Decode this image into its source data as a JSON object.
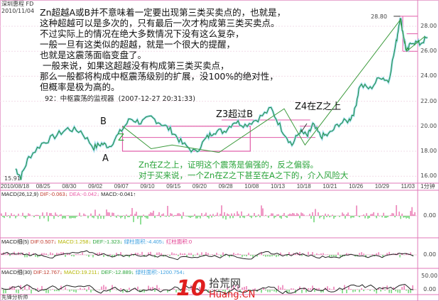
{
  "header": {
    "stock_name": "深圳惠程 FD",
    "date": "2010/11/04"
  },
  "annotation": {
    "lines": [
      "Zn超越A或B并不意味着一定要出现第三类买卖点的，也就是，",
      "这种超越可以是多次的，只有最后一次才构成第三类买卖点。",
      "不过实际上的情况在绝大多数情况下没有这么复杂，",
      "一般一旦有这类似的超越，就是一个很大的提醒，",
      "也就是这震荡面临变盘了。",
      " 一般来说，如果这超越没有构成第三类买卖点，",
      "那么一般都将构成中枢震荡级别的扩展，没100%的绝对性，",
      "但概率是极为高的。"
    ],
    "source": "92：中枢震荡的监视器  (2007-12-27 20:31:33)"
  },
  "chart_labels": {
    "B": "B",
    "A": "A",
    "Z": "Z",
    "z3": "Z3超过B",
    "z4": "Z4在Z之上",
    "green1": "Zn在Z之上，证明这个震荡是偏强的，反之偏弱。",
    "green2": "对于买来说，一个Zn在Z之下甚至在A之下的，介入风险大"
  },
  "chart_data": {
    "type": "line",
    "title": "",
    "x_ticks": [
      "2010/08/18",
      "08/25",
      "08/30",
      "09/02",
      "09/07",
      "09/10",
      "09/15",
      "09/20",
      "09/28",
      "10/08",
      "10/13",
      "10/18",
      "10/21",
      "10/26",
      "10/29",
      "11/03"
    ],
    "period_label": "1分钟",
    "y_ticks": [
      "28.00",
      "26.00",
      "24.00",
      "22.00",
      "20.00",
      "18.00",
      "16.00"
    ],
    "ylim": [
      15.5,
      29.5
    ],
    "max_label": "28.80",
    "min_label": "15.91",
    "price": {
      "x": [
        0,
        0.2,
        0.5,
        1,
        1.5,
        2,
        2.5,
        3,
        3.3,
        3.6,
        4,
        4.4,
        4.8,
        5.2,
        5.6,
        6,
        6.4,
        6.9,
        7.3,
        7.6,
        8,
        8.4,
        8.8,
        9.3,
        9.8,
        10.2,
        10.6,
        10.9,
        11.2,
        11.4,
        11.7,
        12,
        12.4,
        12.8,
        13,
        13.2,
        13.6,
        14,
        14.3,
        14.6,
        14.75,
        14.9,
        15,
        15.2,
        15.5,
        15.8
      ],
      "y": [
        16.6,
        15.91,
        17.5,
        18.6,
        19.2,
        19.8,
        19.6,
        18.3,
        18.6,
        18.4,
        19.5,
        20.6,
        20.3,
        20.7,
        20.2,
        19.6,
        18.6,
        17.9,
        19,
        19.6,
        19.6,
        20.4,
        20.1,
        20.6,
        21.4,
        19.8,
        18.5,
        19.6,
        19.2,
        20.1,
        19.2,
        19.3,
        20.2,
        20.5,
        21.2,
        23.3,
        23,
        24,
        23.6,
        26.7,
        28.8,
        27,
        25.9,
        26.8,
        26.6,
        27.1
      ]
    },
    "zigzag": {
      "x": [
        4.1,
        5.2,
        6.0,
        7.8,
        10.3,
        11.1,
        14.75,
        15.0,
        15.7
      ],
      "y": [
        20.0,
        18.2,
        18.5,
        17.9,
        21.4,
        18.5,
        28.5,
        26.0,
        27.2
      ]
    },
    "pivot_box_center": {
      "x_from": 4.1,
      "x_to": 9.0,
      "low": 18.0,
      "high": 20.0,
      "z": 19.1
    },
    "pivot_box_right": {
      "high": 28.8,
      "mid": 27.4,
      "low": 26.0
    },
    "indicators": [
      {
        "name": "MACD(26,12,9)",
        "items": [
          {
            "text": "DIF:-0.063",
            "arrow": "↓",
            "color": "#c0392b"
          },
          {
            "text": "DEA:-0.042",
            "arrow": "↓",
            "color": "#e85aa5"
          },
          {
            "text": "MACD:-0.041",
            "arrow": "↑",
            "color": "#222222"
          }
        ],
        "zero_label": "0.00"
      },
      {
        "name": "MACD细(5)",
        "items": [
          {
            "text": "DIF:0.507",
            "arrow": "↓",
            "color": "#c0392b"
          },
          {
            "text": "MACD:1.258",
            "arrow": "↓",
            "color": "#b5b500"
          },
          {
            "text": "DEF:-1.323",
            "arrow": "↓",
            "color": "#2aa43a"
          },
          {
            "text": "绿柱面积:-4.405",
            "arrow": "↓",
            "color": "#3ea0e0"
          },
          {
            "text": "红柱面积:0",
            "arrow": "",
            "color": "#e0368c"
          }
        ],
        "zero_label": "0.00"
      },
      {
        "name": "MACD细(30)",
        "items": [
          {
            "text": "DIF:12.767",
            "arrow": "↓",
            "color": "#c0392b"
          },
          {
            "text": "MACD:19.211",
            "arrow": "↓",
            "color": "#b5b500"
          },
          {
            "text": "DEF:-12.889",
            "arrow": "↓",
            "color": "#2aa43a"
          },
          {
            "text": "绿柱面积:-1200.754",
            "arrow": "↓",
            "color": "#3ea0e0"
          }
        ],
        "zero_label": "0.00",
        "top_label": "50.00"
      }
    ],
    "colors": {
      "price": "#1f8c3a",
      "price_glow": "#9fdcf0",
      "zigzag": "#3c9a3c",
      "box": "#e05aa8",
      "up": "#e0368c",
      "down": "#22c02e"
    }
  },
  "footer": {
    "label": "先锋分析师"
  },
  "watermark": {
    "logo_number": "10",
    "site_name": "拾荒网",
    "domain": "Huang.CN"
  }
}
